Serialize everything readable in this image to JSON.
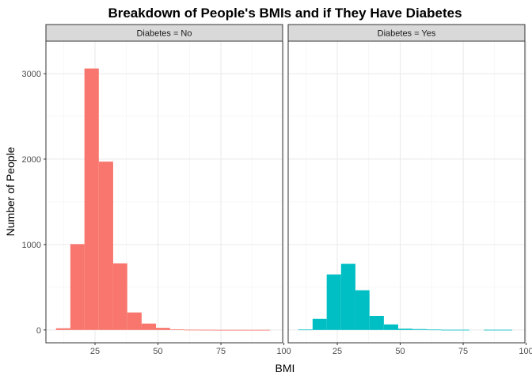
{
  "chart_data": {
    "type": "bar",
    "title": "Breakdown of People's BMIs and if They Have Diabetes",
    "xlabel": "BMI",
    "ylabel": "Number of People",
    "xlim": [
      5.5,
      99.5
    ],
    "ylim": [
      -150,
      3380
    ],
    "x_ticks": [
      25,
      50,
      75,
      100
    ],
    "y_ticks": [
      0,
      1000,
      2000,
      3000
    ],
    "grid": true,
    "legend": "none",
    "bin_width": 5.67,
    "series": [
      {
        "strip": "Diabetes = No",
        "color": "#F8766D",
        "bins": [
          {
            "x0": 9.5,
            "x1": 15.2,
            "count": 20
          },
          {
            "x0": 15.2,
            "x1": 20.8,
            "count": 1005
          },
          {
            "x0": 20.8,
            "x1": 26.5,
            "count": 3060
          },
          {
            "x0": 26.5,
            "x1": 32.2,
            "count": 1970
          },
          {
            "x0": 32.2,
            "x1": 37.8,
            "count": 780
          },
          {
            "x0": 37.8,
            "x1": 43.5,
            "count": 205
          },
          {
            "x0": 43.5,
            "x1": 49.2,
            "count": 75
          },
          {
            "x0": 49.2,
            "x1": 54.8,
            "count": 25
          },
          {
            "x0": 54.8,
            "x1": 60.5,
            "count": 8
          },
          {
            "x0": 60.5,
            "x1": 66.2,
            "count": 3
          },
          {
            "x0": 66.2,
            "x1": 71.8,
            "count": 2
          },
          {
            "x0": 71.8,
            "x1": 77.5,
            "count": 1
          },
          {
            "x0": 77.5,
            "x1": 83.2,
            "count": 1
          },
          {
            "x0": 83.2,
            "x1": 88.8,
            "count": 1
          },
          {
            "x0": 88.8,
            "x1": 94.5,
            "count": 1
          }
        ]
      },
      {
        "strip": "Diabetes = Yes",
        "color": "#00BFC4",
        "bins": [
          {
            "x0": 9.5,
            "x1": 15.2,
            "count": 5
          },
          {
            "x0": 15.2,
            "x1": 20.8,
            "count": 130
          },
          {
            "x0": 20.8,
            "x1": 26.5,
            "count": 650
          },
          {
            "x0": 26.5,
            "x1": 32.2,
            "count": 775
          },
          {
            "x0": 32.2,
            "x1": 37.8,
            "count": 465
          },
          {
            "x0": 37.8,
            "x1": 43.5,
            "count": 165
          },
          {
            "x0": 43.5,
            "x1": 49.2,
            "count": 65
          },
          {
            "x0": 49.2,
            "x1": 54.8,
            "count": 15
          },
          {
            "x0": 54.8,
            "x1": 60.5,
            "count": 10
          },
          {
            "x0": 60.5,
            "x1": 66.2,
            "count": 5
          },
          {
            "x0": 66.2,
            "x1": 71.8,
            "count": 2
          },
          {
            "x0": 71.8,
            "x1": 77.5,
            "count": 2
          },
          {
            "x0": 77.5,
            "x1": 83.2,
            "count": 0
          },
          {
            "x0": 83.2,
            "x1": 88.8,
            "count": 2
          },
          {
            "x0": 88.8,
            "x1": 94.5,
            "count": 2
          }
        ]
      }
    ]
  }
}
